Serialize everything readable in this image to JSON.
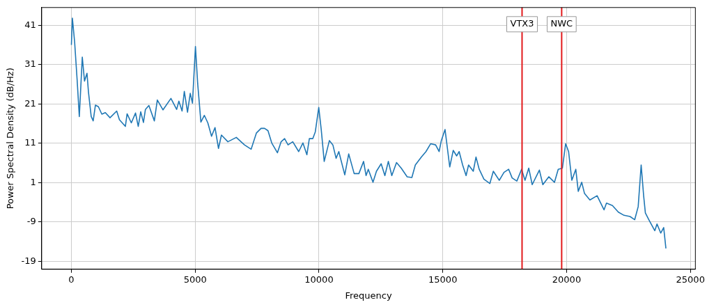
{
  "chart_data": {
    "type": "line",
    "xlabel": "Frequency",
    "ylabel": "Power Spectral Density (dB/Hz)",
    "xlim": [
      -1200,
      25200
    ],
    "xticks": [
      0,
      5000,
      10000,
      15000,
      20000,
      25000
    ],
    "ylim": [
      -21,
      45.5
    ],
    "yticks": [
      -19,
      -9,
      1,
      11,
      21,
      31,
      41
    ],
    "grid": true,
    "legend": false,
    "marker": "none",
    "line_style": "solid",
    "series": [
      {
        "color": "#1f77b4",
        "x": [
          0,
          40,
          130,
          230,
          320,
          440,
          530,
          630,
          690,
          800,
          880,
          970,
          1090,
          1230,
          1370,
          1560,
          1830,
          1940,
          2180,
          2250,
          2420,
          2590,
          2700,
          2800,
          2910,
          2990,
          3130,
          3350,
          3470,
          3700,
          4020,
          4250,
          4340,
          4470,
          4560,
          4690,
          4800,
          4890,
          5010,
          5100,
          5230,
          5370,
          5510,
          5660,
          5800,
          5940,
          6060,
          6320,
          6660,
          6990,
          7260,
          7470,
          7660,
          7800,
          7940,
          8090,
          8320,
          8470,
          8610,
          8750,
          8940,
          9180,
          9350,
          9510,
          9610,
          9750,
          9850,
          9990,
          10090,
          10210,
          10420,
          10560,
          10690,
          10800,
          11040,
          11200,
          11420,
          11610,
          11800,
          11900,
          11990,
          12180,
          12320,
          12510,
          12660,
          12800,
          12940,
          13130,
          13320,
          13560,
          13750,
          13890,
          14130,
          14320,
          14510,
          14710,
          14850,
          14940,
          15090,
          15180,
          15280,
          15420,
          15560,
          15660,
          15800,
          15940,
          16040,
          16230,
          16340,
          16470,
          16660,
          16900,
          17040,
          17280,
          17470,
          17660,
          17800,
          17990,
          18180,
          18320,
          18470,
          18610,
          18900,
          19040,
          19280,
          19510,
          19660,
          19830,
          19960,
          20080,
          20210,
          20370,
          20470,
          20610,
          20720,
          20940,
          21230,
          21510,
          21610,
          21850,
          22090,
          22320,
          22560,
          22750,
          22890,
          23010,
          23110,
          23180,
          23320,
          23560,
          23650,
          23800,
          23920,
          24010
        ],
        "values": [
          36.0,
          42.8,
          36.8,
          27.3,
          17.8,
          32.9,
          26.8,
          28.8,
          24.0,
          17.8,
          16.7,
          20.7,
          20.3,
          18.4,
          18.8,
          17.5,
          19.2,
          17.0,
          15.3,
          18.5,
          16.2,
          18.7,
          15.3,
          19.0,
          16.3,
          19.6,
          20.6,
          16.7,
          22.0,
          19.5,
          22.4,
          19.6,
          21.7,
          19.2,
          24.2,
          18.9,
          23.7,
          21.2,
          35.6,
          26.2,
          16.4,
          18.1,
          16.2,
          12.8,
          15.0,
          9.7,
          13.1,
          11.4,
          12.5,
          10.6,
          9.5,
          13.6,
          14.8,
          14.8,
          14.2,
          11.1,
          8.6,
          11.4,
          12.2,
          10.6,
          11.4,
          8.9,
          11.1,
          8.1,
          12.2,
          12.2,
          13.9,
          20.1,
          14.5,
          6.4,
          11.7,
          10.6,
          7.2,
          8.9,
          3.0,
          8.3,
          3.3,
          3.3,
          6.4,
          2.8,
          4.4,
          1.1,
          3.9,
          5.8,
          2.8,
          6.4,
          2.8,
          6.1,
          4.7,
          2.5,
          2.3,
          5.5,
          7.5,
          8.9,
          10.9,
          10.6,
          8.9,
          11.7,
          14.5,
          10.0,
          5.0,
          9.2,
          7.8,
          8.9,
          5.5,
          2.8,
          5.5,
          3.9,
          7.5,
          4.4,
          1.9,
          0.8,
          3.9,
          1.6,
          3.6,
          4.4,
          2.2,
          1.4,
          4.4,
          1.6,
          4.7,
          0.5,
          4.2,
          0.5,
          2.5,
          1.1,
          4.4,
          4.7,
          10.9,
          8.9,
          1.6,
          4.4,
          -1.2,
          1.1,
          -1.7,
          -3.4,
          -2.3,
          -5.9,
          -4.2,
          -4.8,
          -6.5,
          -7.3,
          -7.6,
          -8.4,
          -5.1,
          5.5,
          -2.3,
          -6.7,
          -8.4,
          -11.2,
          -9.5,
          -11.8,
          -10.4,
          -15.7
        ]
      }
    ],
    "ref_lines": [
      {
        "axis": "x",
        "value": 18200,
        "label": "VTX3",
        "color": "#e31a1c"
      },
      {
        "axis": "x",
        "value": 19800,
        "label": "NWC",
        "color": "#e31a1c"
      }
    ]
  }
}
